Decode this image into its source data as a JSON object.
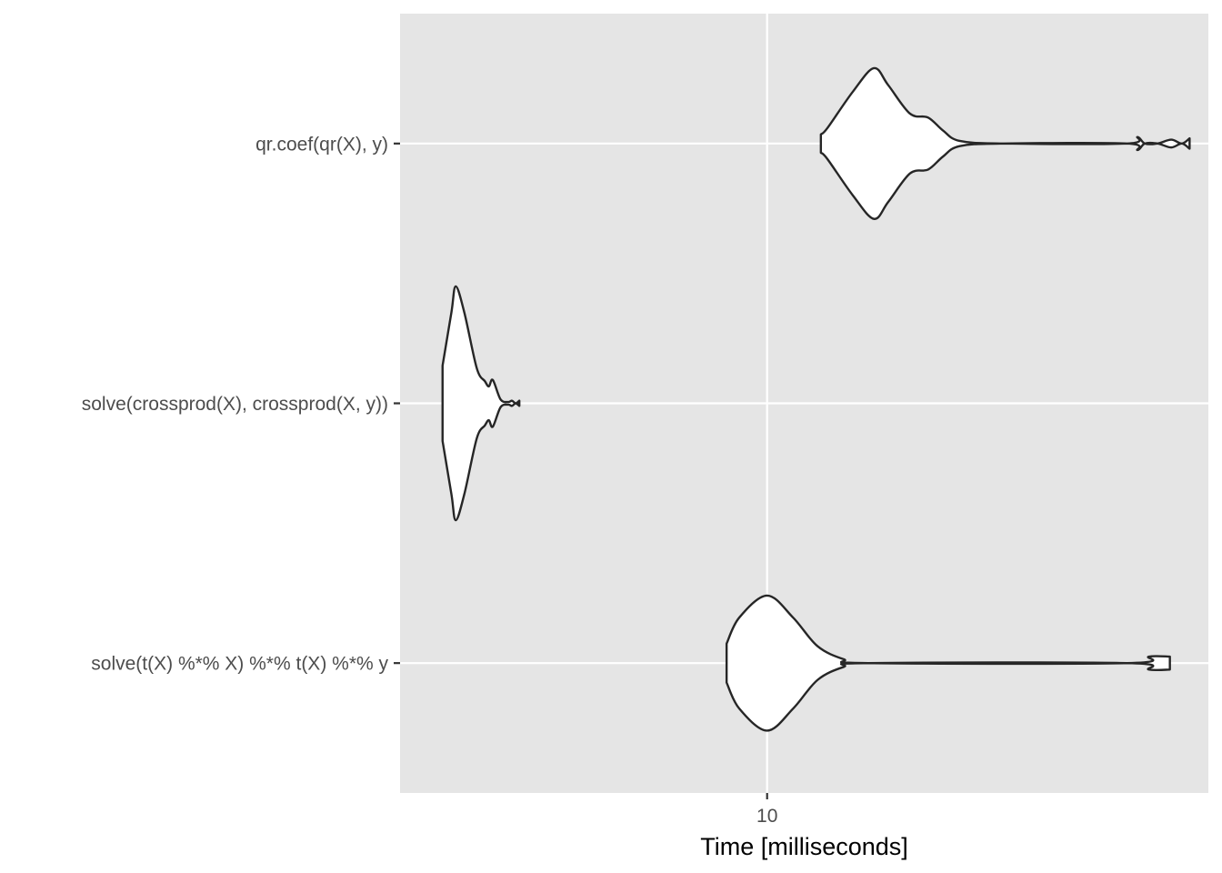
{
  "chart_data": {
    "type": "violin",
    "orientation": "horizontal",
    "xlabel": "Time [milliseconds]",
    "x_scale": "log10",
    "x_ticks": [
      10
    ],
    "x_tick_labels": [
      "10"
    ],
    "xlim": [
      3.85,
      31.5
    ],
    "grid": true,
    "legend": "none",
    "colors": {
      "panel": "#e5e5e5",
      "grid": "#ffffff",
      "violin_fill": "#ffffff",
      "violin_stroke": "#262626",
      "tick": "#333333"
    },
    "categories": [
      "qr.coef(qr(X), y)",
      "solve(crossprod(X), crossprod(X, y))",
      "solve(t(X) %*% X) %*% t(X) %*% y"
    ],
    "series": [
      {
        "label": "qr.coef(qr(X), y)",
        "min": 11.5,
        "max": 30.0,
        "density": [
          [
            11.5,
            0.07
          ],
          [
            11.7,
            0.12
          ],
          [
            12.5,
            0.4
          ],
          [
            13.2,
            0.58
          ],
          [
            13.7,
            0.45
          ],
          [
            14.5,
            0.23
          ],
          [
            15.2,
            0.2
          ],
          [
            15.8,
            0.1
          ],
          [
            16.5,
            0.02
          ],
          [
            18.5,
            0.0
          ],
          [
            25.5,
            0.0
          ],
          [
            26.2,
            0.05
          ],
          [
            26.7,
            0.0
          ],
          [
            27.6,
            0.0
          ],
          [
            28.6,
            0.03
          ],
          [
            29.4,
            0.0
          ],
          [
            30.0,
            0.04
          ]
        ]
      },
      {
        "label": "solve(crossprod(X), crossprod(X, y))",
        "min": 4.3,
        "max": 5.25,
        "density": [
          [
            4.3,
            0.29
          ],
          [
            4.4,
            0.7
          ],
          [
            4.45,
            0.9
          ],
          [
            4.55,
            0.7
          ],
          [
            4.7,
            0.27
          ],
          [
            4.8,
            0.17
          ],
          [
            4.85,
            0.13
          ],
          [
            4.9,
            0.18
          ],
          [
            5.0,
            0.03
          ],
          [
            5.1,
            0.01
          ],
          [
            5.15,
            0.02
          ],
          [
            5.2,
            0.0
          ],
          [
            5.25,
            0.02
          ]
        ]
      },
      {
        "label": "solve(t(X) %*% X) %*% t(X) %*% y",
        "min": 9.0,
        "max": 28.5,
        "density": [
          [
            9.0,
            0.15
          ],
          [
            9.3,
            0.35
          ],
          [
            10.0,
            0.52
          ],
          [
            10.7,
            0.35
          ],
          [
            11.4,
            0.13
          ],
          [
            12.2,
            0.03
          ],
          [
            13.0,
            0.0
          ],
          [
            25.5,
            0.0
          ],
          [
            27.0,
            0.05
          ],
          [
            28.5,
            0.05
          ]
        ]
      }
    ]
  }
}
